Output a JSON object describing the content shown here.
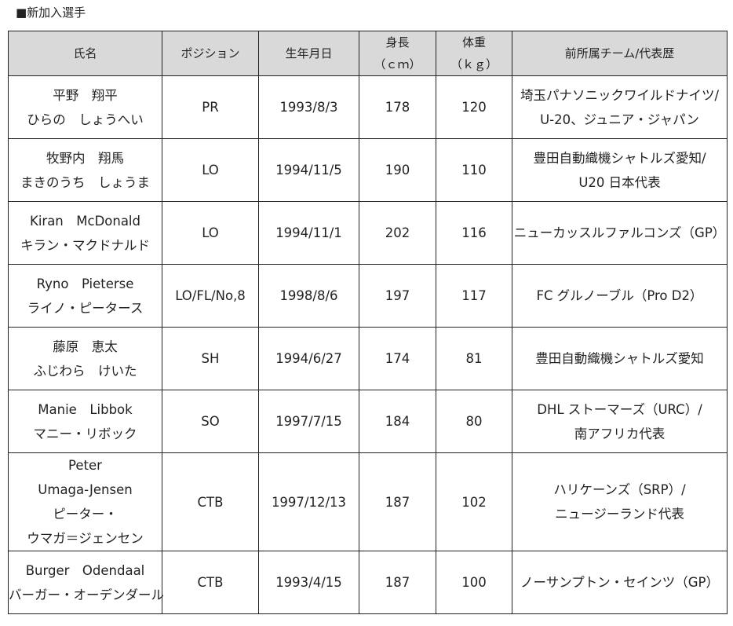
{
  "title": "■新加入選手",
  "table": {
    "headers": [
      [
        "氏名"
      ],
      [
        "ポジション"
      ],
      [
        "生年月日"
      ],
      [
        "身長",
        "（ｃｍ）"
      ],
      [
        "体重",
        "（ｋｇ）"
      ],
      [
        "前所属チーム/代表歴"
      ]
    ],
    "rows": [
      [
        [
          "平野　翔平",
          "ひらの　しょうへい"
        ],
        [
          "PR"
        ],
        [
          "1993/8/3"
        ],
        [
          "178"
        ],
        [
          "120"
        ],
        [
          "埼玉パナソニックワイルドナイツ/",
          "U-20、ジュニア・ジャパン"
        ]
      ],
      [
        [
          "牧野内　翔馬",
          "まきのうち　しょうま"
        ],
        [
          "LO"
        ],
        [
          "1994/11/5"
        ],
        [
          "190"
        ],
        [
          "110"
        ],
        [
          "豊田自動織機シャトルズ愛知/",
          "U20 日本代表"
        ]
      ],
      [
        [
          "Kiran　McDonald",
          "キラン・マクドナルド"
        ],
        [
          "LO"
        ],
        [
          "1994/11/1"
        ],
        [
          "202"
        ],
        [
          "116"
        ],
        [
          "ニューカッスルファルコンズ（GP）"
        ]
      ],
      [
        [
          "Ryno　Pieterse",
          "ライノ・ピータース"
        ],
        [
          "LO/FL/No,8"
        ],
        [
          "1998/8/6"
        ],
        [
          "197"
        ],
        [
          "117"
        ],
        [
          "FC グルノーブル（Pro D2）"
        ]
      ],
      [
        [
          "藤原　恵太",
          "ふじわら　けいた"
        ],
        [
          "SH"
        ],
        [
          "1994/6/27"
        ],
        [
          "174"
        ],
        [
          "81"
        ],
        [
          "豊田自動織機シャトルズ愛知"
        ]
      ],
      [
        [
          "Manie　Libbok",
          "マニー・リボック"
        ],
        [
          "SO"
        ],
        [
          "1997/7/15"
        ],
        [
          "184"
        ],
        [
          "80"
        ],
        [
          "DHL ストーマーズ（URC）/",
          "南アフリカ代表"
        ]
      ],
      [
        [
          "Peter",
          "Umaga-Jensen",
          "ピーター・",
          "ウマガ＝ジェンセン"
        ],
        [
          "CTB"
        ],
        [
          "1997/12/13"
        ],
        [
          "187"
        ],
        [
          "102"
        ],
        [
          "ハリケーンズ（SRP）/",
          "ニュージーランド代表"
        ]
      ],
      [
        [
          "Burger　Odendaal",
          "バーガー・オーデンダール"
        ],
        [
          "CTB"
        ],
        [
          "1993/4/15"
        ],
        [
          "187"
        ],
        [
          "100"
        ],
        [
          "ノーサンプトン・セインツ（GP）"
        ]
      ]
    ]
  }
}
